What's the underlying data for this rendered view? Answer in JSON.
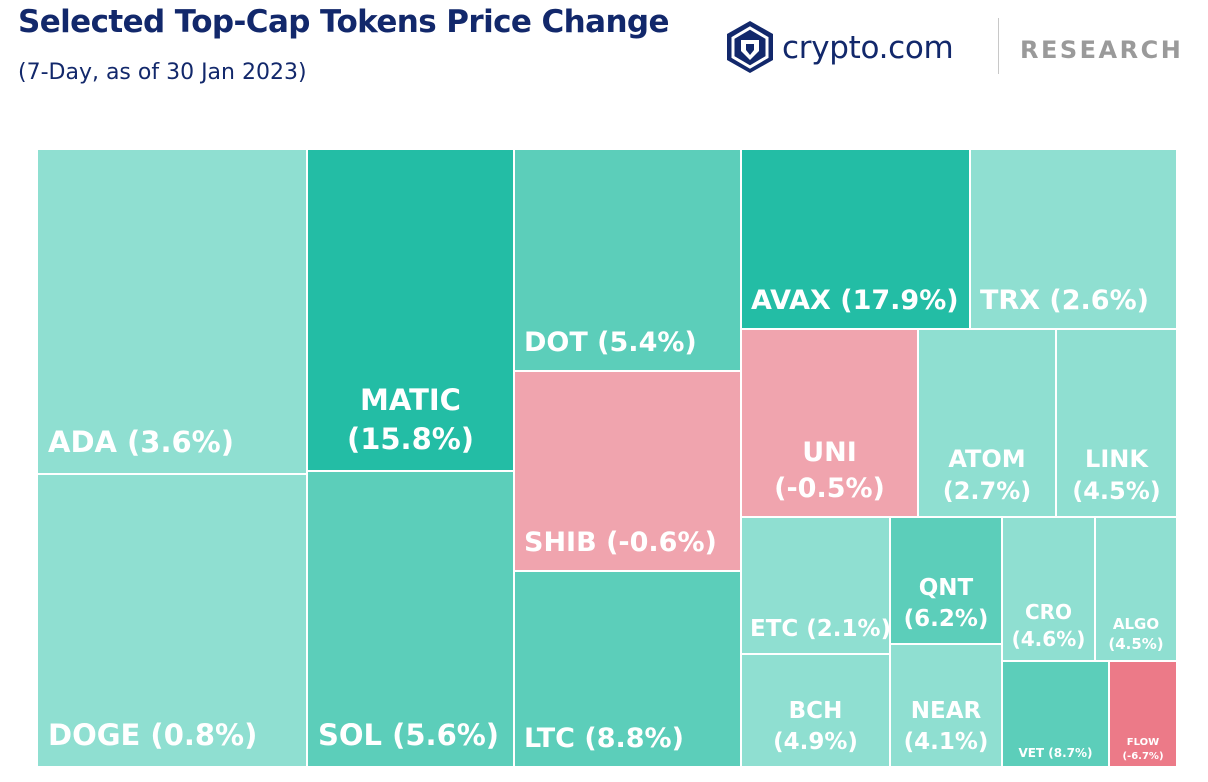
{
  "header": {
    "title": "Selected Top-Cap Tokens Price Change",
    "subtitle": "(7-Day, as of 30 Jan 2023)"
  },
  "brand": {
    "name": "crypto.com",
    "tagline": "RESEARCH",
    "logo_icon": "crypto-com-lion-shield-icon",
    "color": "#12286b"
  },
  "chart_data": {
    "type": "treemap",
    "title": "Selected Top-Cap Tokens Price Change",
    "subtitle": "(7-Day, as of 30 Jan 2023)",
    "unit": "%",
    "colors": {
      "positive_light": "#8fdfd1",
      "positive_mid": "#5cceba",
      "positive_strong": "#23bda5",
      "negative_light": "#f0a4ae",
      "negative_strong": "#ec7a88"
    },
    "tiles": [
      {
        "token": "ADA",
        "change": 3.6,
        "label": "ADA (3.6%)"
      },
      {
        "token": "DOGE",
        "change": 0.8,
        "label": "DOGE (0.8%)"
      },
      {
        "token": "MATIC",
        "change": 15.8,
        "label": "MATIC (15.8%)"
      },
      {
        "token": "SOL",
        "change": 5.6,
        "label": "SOL (5.6%)"
      },
      {
        "token": "DOT",
        "change": 5.4,
        "label": "DOT (5.4%)"
      },
      {
        "token": "SHIB",
        "change": -0.6,
        "label": "SHIB (-0.6%)"
      },
      {
        "token": "LTC",
        "change": 8.8,
        "label": "LTC (8.8%)"
      },
      {
        "token": "AVAX",
        "change": 17.9,
        "label": "AVAX (17.9%)"
      },
      {
        "token": "TRX",
        "change": 2.6,
        "label": "TRX (2.6%)"
      },
      {
        "token": "UNI",
        "change": -0.5,
        "label": "UNI (-0.5%)"
      },
      {
        "token": "ATOM",
        "change": 2.7,
        "label": "ATOM (2.7%)"
      },
      {
        "token": "LINK",
        "change": 4.5,
        "label": "LINK (4.5%)"
      },
      {
        "token": "ETC",
        "change": 2.1,
        "label": "ETC (2.1%)"
      },
      {
        "token": "QNT",
        "change": 6.2,
        "label": "QNT (6.2%)"
      },
      {
        "token": "CRO",
        "change": 4.6,
        "label": "CRO (4.6%)"
      },
      {
        "token": "ALGO",
        "change": 4.5,
        "label": "ALGO (4.5%)"
      },
      {
        "token": "BCH",
        "change": 4.9,
        "label": "BCH (4.9%)"
      },
      {
        "token": "NEAR",
        "change": 4.1,
        "label": "NEAR (4.1%)"
      },
      {
        "token": "VET",
        "change": 8.7,
        "label": "VET (8.7%)"
      },
      {
        "token": "FLOW",
        "change": -6.7,
        "label": "FLOW (-6.7%)"
      }
    ]
  }
}
